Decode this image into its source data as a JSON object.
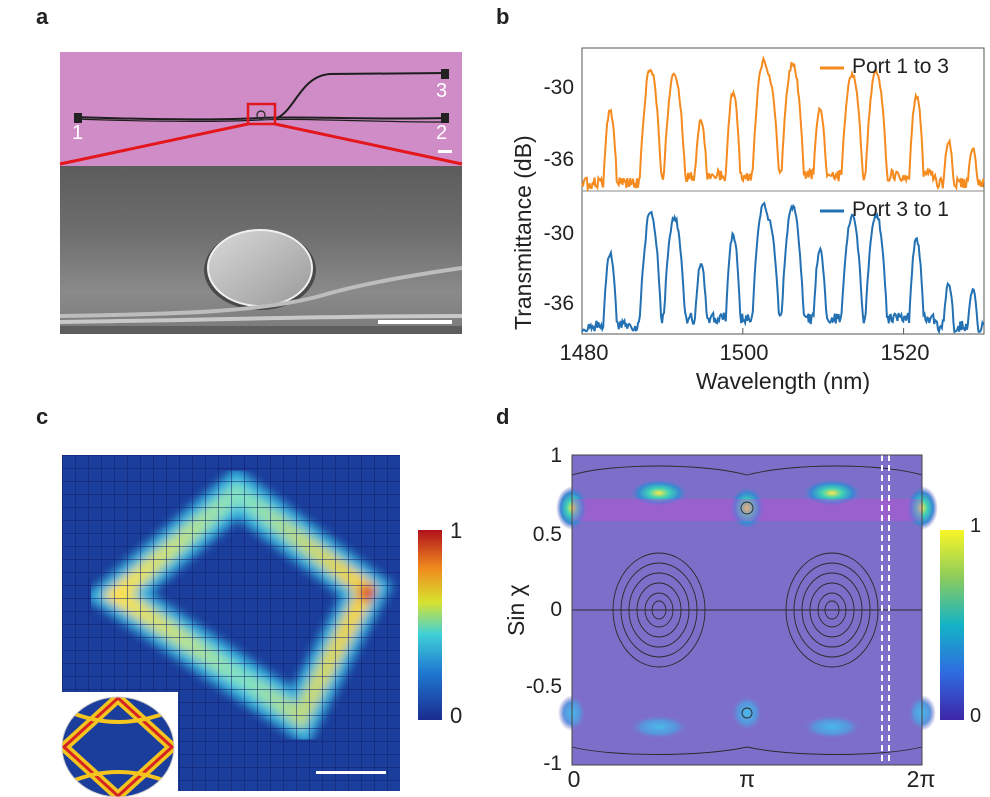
{
  "panels": {
    "a": {
      "letter": "a",
      "port_labels": [
        "1",
        "2",
        "3"
      ],
      "colors": {
        "background": "#cf8cc6",
        "waveguide": "#1e1e1e",
        "zoom_box": "#e3161c"
      }
    },
    "b": {
      "letter": "b",
      "xlabel": "Wavelength (nm)",
      "ylabel": "Transmittance (dB)",
      "chart_data": {
        "type": "line",
        "x_ticks": [
          1480,
          1500,
          1520
        ],
        "xlim": [
          1480,
          1530
        ],
        "y_ticks": [
          -30,
          -36
        ],
        "series": [
          {
            "name": "Port 1 to 3",
            "color": "#f58a1f",
            "ylim": [
              -38,
              -27
            ],
            "peaks": [
              [
                1483.5,
                -31.8
              ],
              [
                1488.5,
                -29.2
              ],
              [
                1491.5,
                -29.6
              ],
              [
                1494.8,
                -33.2
              ],
              [
                1498.8,
                -31.0
              ],
              [
                1502.6,
                -28.6
              ],
              [
                1503.2,
                -29.8
              ],
              [
                1506.2,
                -28.8
              ],
              [
                1509.6,
                -32.2
              ],
              [
                1513.6,
                -29.6
              ],
              [
                1516.6,
                -29.4
              ],
              [
                1521.6,
                -31.3
              ],
              [
                1525.6,
                -34.2
              ],
              [
                1528.6,
                -34.6
              ]
            ]
          },
          {
            "name": "Port 3 to 1",
            "color": "#2371b2",
            "ylim": [
              -38,
              -27
            ],
            "peaks": [
              [
                1483.5,
                -31.8
              ],
              [
                1488.5,
                -29.2
              ],
              [
                1491.5,
                -29.6
              ],
              [
                1494.8,
                -33.2
              ],
              [
                1498.8,
                -31.0
              ],
              [
                1502.6,
                -28.6
              ],
              [
                1503.2,
                -29.8
              ],
              [
                1506.2,
                -28.8
              ],
              [
                1509.6,
                -32.2
              ],
              [
                1513.6,
                -29.6
              ],
              [
                1516.6,
                -29.4
              ],
              [
                1521.6,
                -31.3
              ],
              [
                1525.6,
                -34.2
              ],
              [
                1528.6,
                -34.6
              ]
            ]
          }
        ]
      }
    },
    "c": {
      "letter": "c",
      "colorbar_max": "1",
      "colorbar_min": "0"
    },
    "d": {
      "letter": "d",
      "ylabel": "Sin χ",
      "x_ticks": [
        "0",
        "π",
        "2π"
      ],
      "y_ticks": [
        "1",
        "0.5",
        "0",
        "-0.5",
        "-1"
      ],
      "colorbar_max": "1",
      "colorbar_min": "0"
    }
  }
}
